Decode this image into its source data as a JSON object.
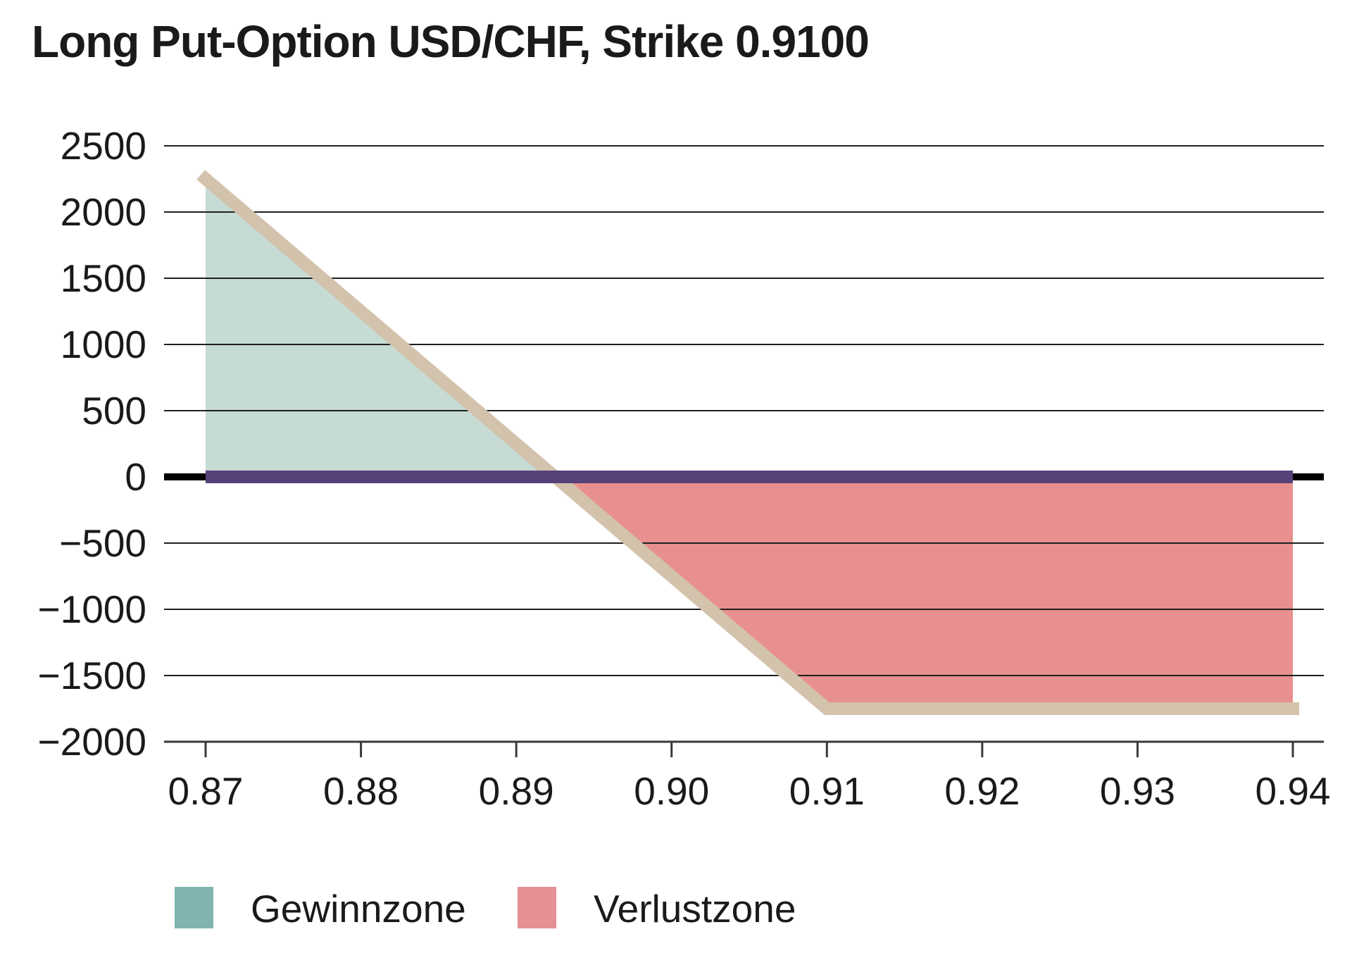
{
  "header": {
    "title": "Long Put-Option USD/CHF, Strike 0.9100"
  },
  "chart_data": {
    "type": "area",
    "title": "Long Put-Option USD/CHF, Strike 0.9100",
    "x_axis": {
      "tick_labels": [
        "0.87",
        "0.88",
        "0.89",
        "0.90",
        "0.91",
        "0.92",
        "0.93",
        "0.94"
      ],
      "tick_values": [
        0.87,
        0.88,
        0.89,
        0.9,
        0.91,
        0.92,
        0.93,
        0.94
      ],
      "range": [
        0.87,
        0.94
      ]
    },
    "y_axis": {
      "tick_labels": [
        "2500",
        "2000",
        "1500",
        "1000",
        "500",
        "0",
        "−500",
        "−1000",
        "−1500",
        "−2000"
      ],
      "tick_values": [
        2500,
        2000,
        1500,
        1000,
        500,
        0,
        -500,
        -1000,
        -1500,
        -2000
      ],
      "range": [
        -2000,
        2500
      ]
    },
    "grid": "horizontal",
    "strike": 0.91,
    "breakeven": 0.8925,
    "series": [
      {
        "name": "payoff-long-put",
        "x": [
          0.87,
          0.91,
          0.94
        ],
        "y": [
          2250,
          -1750,
          -1750
        ],
        "color": "#d3c2ac",
        "width": 18
      },
      {
        "name": "zero-line-highlight",
        "x": [
          0.87,
          0.94
        ],
        "y": [
          0,
          0
        ],
        "color": "#564179",
        "width": 18
      }
    ],
    "zones": [
      {
        "name": "Gewinnzone",
        "fill": "#c5dbd4",
        "from_x": 0.87,
        "to_x": 0.8925
      },
      {
        "name": "Verlustzone",
        "fill": "#e8908f",
        "from_x": 0.8925,
        "to_x": 0.94
      }
    ],
    "legend": [
      {
        "label": "Gewinnzone",
        "color": "#7fb5ae"
      },
      {
        "label": "Verlustzone",
        "color": "#e59094"
      }
    ],
    "style": {
      "gridline_color": "#1f1f1f",
      "zero_baseline_color": "#000000",
      "axis_color": "#3a3a3a",
      "label_color": "#1a1a1a"
    }
  }
}
